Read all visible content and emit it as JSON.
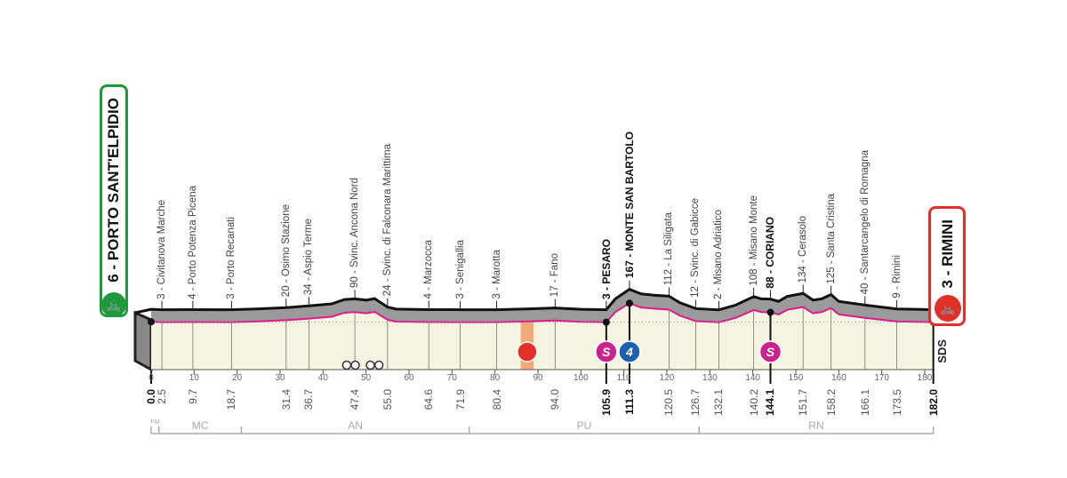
{
  "start": {
    "altitude": "6",
    "name": "PORTO SANT'ELPIDIO",
    "label": "6 - PORTO SANT'ELPIDIO",
    "color": "#1e9a3c"
  },
  "finish": {
    "altitude": "3",
    "name": "RIMINI",
    "label": "3 - RIMINI",
    "color": "#e03028"
  },
  "logo": "SDS",
  "chart_data": {
    "type": "area",
    "xlim": [
      0,
      182
    ],
    "x_ticks": [
      "0",
      "10",
      "20",
      "30",
      "40",
      "50",
      "60",
      "70",
      "80",
      "90",
      "100",
      "110",
      "120",
      "130",
      "140",
      "150",
      "160",
      "170",
      "180"
    ],
    "waypoints": [
      {
        "km": "2.5",
        "alt": 3,
        "label": "3 - Civitanova Marche"
      },
      {
        "km": "9.7",
        "alt": 4,
        "label": "4 - Porto Potenza Picena"
      },
      {
        "km": "18.7",
        "alt": 3,
        "label": "3 - Porto Recanati"
      },
      {
        "km": "31.4",
        "alt": 20,
        "label": "20 - Osimo Stazione"
      },
      {
        "km": "36.7",
        "alt": 34,
        "label": "34 - Aspio Terme"
      },
      {
        "km": "47.4",
        "alt": 90,
        "label": "90 - Svinc. Ancona Nord"
      },
      {
        "km": "55.0",
        "alt": 24,
        "label": "24 - Svinc. di Falconara Marittima"
      },
      {
        "km": "64.6",
        "alt": 4,
        "label": "4 - Marzocca"
      },
      {
        "km": "71.9",
        "alt": 3,
        "label": "3 - Senigallia"
      },
      {
        "km": "80.4",
        "alt": 3,
        "label": "3 - Marotta"
      },
      {
        "km": "94.0",
        "alt": 17,
        "label": "17 - Fano"
      },
      {
        "km": "105.9",
        "alt": 3,
        "label": "3 - PESARO",
        "bold": true,
        "marker": "sprint"
      },
      {
        "km": "111.3",
        "alt": 167,
        "label": "167 - MONTE SAN BARTOLO",
        "bold": true,
        "marker": "gpm",
        "category": "4"
      },
      {
        "km": "120.5",
        "alt": 112,
        "label": "112 - La Siligata"
      },
      {
        "km": "126.7",
        "alt": 12,
        "label": "12 - Svinc. di Gabicce"
      },
      {
        "km": "132.1",
        "alt": 2,
        "label": "2 - Misano Adriatico"
      },
      {
        "km": "140.2",
        "alt": 108,
        "label": "108 - Misano Monte"
      },
      {
        "km": "144.1",
        "alt": 88,
        "label": "88 - CORIANO",
        "bold": true,
        "marker": "sprint"
      },
      {
        "km": "151.7",
        "alt": 134,
        "label": "134 - Cerasolo"
      },
      {
        "km": "158.2",
        "alt": 125,
        "label": "125 - Santa Cristina"
      },
      {
        "km": "166.1",
        "alt": 40,
        "label": "40 - Santarcangelo di Romagna"
      },
      {
        "km": "173.5",
        "alt": 9,
        "label": "9 - Rimini"
      }
    ],
    "km_labels": [
      {
        "km": "0.0",
        "bold": true
      },
      {
        "km": "2.5"
      },
      {
        "km": "9.7"
      },
      {
        "km": "18.7"
      },
      {
        "km": "31.4"
      },
      {
        "km": "36.7"
      },
      {
        "km": "47.4"
      },
      {
        "km": "55.0"
      },
      {
        "km": "64.6"
      },
      {
        "km": "71.9"
      },
      {
        "km": "80.4"
      },
      {
        "km": "94.0"
      },
      {
        "km": "105.9",
        "bold": true
      },
      {
        "km": "111.3",
        "bold": true
      },
      {
        "km": "120.5"
      },
      {
        "km": "126.7"
      },
      {
        "km": "132.1"
      },
      {
        "km": "140.2"
      },
      {
        "km": "144.1",
        "bold": true
      },
      {
        "km": "151.7"
      },
      {
        "km": "158.2"
      },
      {
        "km": "166.1"
      },
      {
        "km": "173.5"
      },
      {
        "km": "182.0",
        "bold": true
      }
    ],
    "profile": [
      [
        0,
        6
      ],
      [
        2.5,
        3
      ],
      [
        9.7,
        4
      ],
      [
        18.7,
        3
      ],
      [
        25,
        10
      ],
      [
        31.4,
        20
      ],
      [
        36.7,
        34
      ],
      [
        42,
        50
      ],
      [
        45,
        85
      ],
      [
        47.4,
        90
      ],
      [
        50,
        80
      ],
      [
        52,
        92
      ],
      [
        55,
        24
      ],
      [
        57,
        8
      ],
      [
        64.6,
        4
      ],
      [
        71.9,
        3
      ],
      [
        80.4,
        3
      ],
      [
        88,
        10
      ],
      [
        94,
        17
      ],
      [
        100,
        6
      ],
      [
        105.9,
        3
      ],
      [
        108,
        90
      ],
      [
        111.3,
        167
      ],
      [
        114,
        130
      ],
      [
        117,
        120
      ],
      [
        120.5,
        112
      ],
      [
        123,
        60
      ],
      [
        126.7,
        12
      ],
      [
        132.1,
        2
      ],
      [
        136,
        40
      ],
      [
        140.2,
        108
      ],
      [
        142,
        90
      ],
      [
        144.1,
        88
      ],
      [
        146,
        70
      ],
      [
        148,
        110
      ],
      [
        151.7,
        134
      ],
      [
        154,
        80
      ],
      [
        156,
        90
      ],
      [
        158.2,
        125
      ],
      [
        160,
        70
      ],
      [
        166.1,
        40
      ],
      [
        173.5,
        9
      ],
      [
        178,
        6
      ],
      [
        182,
        3
      ]
    ],
    "feed_zone": {
      "from": 86,
      "to": 89
    },
    "provinces": [
      {
        "code": "FM",
        "from": 0,
        "to": 1.8
      },
      {
        "code": "MC",
        "from": 1.8,
        "to": 21
      },
      {
        "code": "AN",
        "from": 21,
        "to": 74
      },
      {
        "code": "PU",
        "from": 74,
        "to": 127.5
      },
      {
        "code": "RN",
        "from": 127.5,
        "to": 182
      }
    ],
    "colors": {
      "profile_fill": "#f5f4e0",
      "shoulder": "#9a9a9a",
      "altitude_line": "#e0198c",
      "sprint": "#c8238e",
      "gpm": "#1f5fb0",
      "feed": "#f4a878"
    }
  }
}
